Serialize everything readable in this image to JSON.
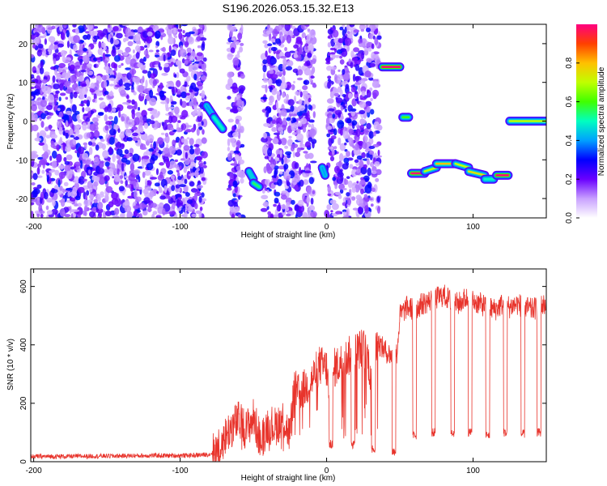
{
  "title": "S196.2026.053.15.32.E13",
  "chart_data": [
    {
      "type": "heatmap",
      "name": "spectrogram",
      "xlabel": "Height of straight line (km)",
      "ylabel": "Frequency (Hz)",
      "xlim": [
        -202,
        150
      ],
      "ylim": [
        -25,
        25
      ],
      "xticks": [
        -200,
        -100,
        0,
        100
      ],
      "yticks": [
        -20,
        -10,
        0,
        10,
        20
      ],
      "colorbar": {
        "label": "Normalized spectral amplitude",
        "range": [
          0,
          1
        ],
        "ticks": [
          "0.0",
          "0.2",
          "0.4",
          "0.6",
          "0.8"
        ],
        "tick_values": [
          0,
          0.2,
          0.4,
          0.6,
          0.8
        ]
      },
      "noise_regions": [
        [
          -202,
          -83
        ],
        [
          -67,
          -57
        ],
        [
          -43,
          -8
        ],
        [
          0,
          36
        ]
      ],
      "streaks": [
        {
          "x": [
            -82,
            -75
          ],
          "freq": [
            4,
            0
          ],
          "amp": 0.4
        },
        {
          "x": [
            -77,
            -71
          ],
          "freq": [
            1,
            -2
          ],
          "amp": 0.5
        },
        {
          "x": [
            -53,
            -50
          ],
          "freq": [
            -13,
            -15
          ],
          "amp": 0.45
        },
        {
          "x": [
            -50,
            -46
          ],
          "freq": [
            -16,
            -17
          ],
          "amp": 0.55
        },
        {
          "x": [
            -3,
            -1
          ],
          "freq": [
            -12,
            -14
          ],
          "amp": 0.4
        },
        {
          "x": [
            38,
            50
          ],
          "freq": [
            14,
            14
          ],
          "amp": 1.0
        },
        {
          "x": [
            52,
            56
          ],
          "freq": [
            1,
            1
          ],
          "amp": 0.6
        },
        {
          "x": [
            58,
            67
          ],
          "freq": [
            -13.5,
            -13.5
          ],
          "amp": 1.0
        },
        {
          "x": [
            67,
            75
          ],
          "freq": [
            -13,
            -12
          ],
          "amp": 0.7
        },
        {
          "x": [
            75,
            88
          ],
          "freq": [
            -11,
            -11
          ],
          "amp": 0.8
        },
        {
          "x": [
            88,
            97
          ],
          "freq": [
            -11,
            -12
          ],
          "amp": 0.7
        },
        {
          "x": [
            97,
            108
          ],
          "freq": [
            -13,
            -14
          ],
          "amp": 0.75
        },
        {
          "x": [
            108,
            114
          ],
          "freq": [
            -15,
            -15
          ],
          "amp": 0.5
        },
        {
          "x": [
            116,
            124
          ],
          "freq": [
            -14,
            -14
          ],
          "amp": 1.0
        },
        {
          "x": [
            125,
            150
          ],
          "freq": [
            0,
            0
          ],
          "amp": 0.7
        }
      ]
    },
    {
      "type": "line",
      "name": "snr",
      "xlabel": "Height of straight line (km)",
      "ylabel": "SNR (10 * v/v)",
      "xlim": [
        -202,
        150
      ],
      "ylim": [
        0,
        660
      ],
      "xticks": [
        -200,
        -100,
        0,
        100
      ],
      "yticks": [
        0,
        200,
        400,
        600
      ],
      "color": "#e8342c",
      "series": [
        {
          "name": "SNR",
          "x": [
            -202,
            -180,
            -160,
            -140,
            -120,
            -100,
            -90,
            -80,
            -75,
            -70,
            -65,
            -60,
            -55,
            -50,
            -45,
            -40,
            -35,
            -30,
            -25,
            -22,
            -20,
            -15,
            -10,
            -5,
            0,
            3,
            5,
            10,
            15,
            20,
            25,
            28,
            30,
            35,
            38,
            40,
            45,
            48,
            50,
            55,
            60,
            65,
            70,
            75,
            80,
            85,
            90,
            95,
            100,
            105,
            110,
            115,
            120,
            125,
            130,
            135,
            140,
            145,
            150
          ],
          "values": [
            18,
            18,
            19,
            20,
            21,
            21,
            22,
            25,
            40,
            80,
            120,
            140,
            110,
            150,
            70,
            130,
            120,
            150,
            90,
            260,
            230,
            250,
            280,
            330,
            320,
            150,
            320,
            340,
            360,
            380,
            390,
            360,
            300,
            410,
            390,
            380,
            360,
            370,
            500,
            530,
            520,
            540,
            550,
            560,
            570,
            550,
            540,
            560,
            550,
            540,
            530,
            520,
            540,
            530,
            540,
            530,
            520,
            530,
            540
          ]
        }
      ],
      "dips": [
        {
          "x": 3,
          "value": 60
        },
        {
          "x": 18,
          "value": 60
        },
        {
          "x": 32,
          "value": 45
        },
        {
          "x": 46,
          "value": 35
        },
        {
          "x": 60,
          "value": 90
        },
        {
          "x": 73,
          "value": 100
        },
        {
          "x": 86,
          "value": 100
        },
        {
          "x": 98,
          "value": 100
        },
        {
          "x": 110,
          "value": 90
        },
        {
          "x": 122,
          "value": 100
        },
        {
          "x": 134,
          "value": 95
        },
        {
          "x": 145,
          "value": 100
        }
      ]
    }
  ]
}
